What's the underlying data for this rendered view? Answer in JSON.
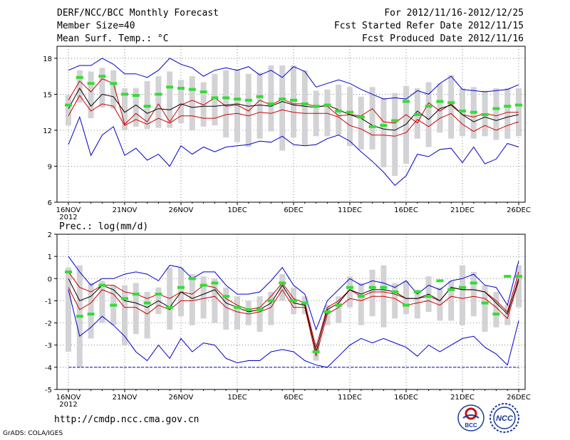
{
  "header": {
    "title": "DERF/NCC/BCC Monthly Forecast",
    "member_size": "Member Size=40",
    "variable1": "Mean Surf. Temp.: °C",
    "period": "For 2012/11/16-2012/12/25",
    "start_date": "Fcst Started Refer Date 2012/11/15",
    "produced_date": "Fcst Produced Date 2012/11/16"
  },
  "footer": {
    "url": "http://cmdp.ncc.cma.gov.cn",
    "credit": "GrADS: COLA/IGES",
    "logo_bcc": "BCC",
    "logo_ncc": "NCC"
  },
  "colors": {
    "envelope": "#0000cc",
    "spread": "#cc0000",
    "mean": "#000000",
    "obs": "#33dd33",
    "box": "#d3d3d6",
    "grid": "#555555"
  },
  "chart_data": [
    {
      "type": "line",
      "title": "Mean Surf. Temp.: °C",
      "xlabel": "",
      "ylabel": "Mean Surf. Temp. (°C)",
      "x_ticks": [
        "16NOV",
        "21NOV",
        "26NOV",
        "1DEC",
        "6DEC",
        "11DEC",
        "16DEC",
        "21DEC",
        "26DEC"
      ],
      "x_tick_year": "2012",
      "ylim": [
        6,
        19
      ],
      "y_ticks": [
        6,
        9,
        12,
        15,
        18
      ],
      "grid": true,
      "series": [
        {
          "name": "max",
          "values": [
            10.8,
            13.1,
            9.9,
            11.6,
            12.3,
            9.9,
            10.5,
            9.5,
            10.0,
            9.0,
            10.7,
            10.0,
            10.6,
            10.2,
            10.6,
            10.7,
            10.8,
            11.1,
            11.0,
            11.5,
            10.8,
            10.7,
            10.8,
            11.3,
            11.6,
            11.1,
            10.2,
            9.4,
            8.5,
            7.4,
            8.2,
            10.0,
            9.8,
            10.4,
            10.5,
            9.3,
            10.6,
            9.2,
            9.6,
            10.9,
            10.6
          ]
        },
        {
          "name": "upper",
          "values": [
            14.5,
            16.1,
            15.2,
            16.3,
            15.9,
            12.5,
            13.4,
            12.7,
            14.2,
            12.7,
            14.1,
            14.5,
            14.1,
            14.7,
            14.0,
            14.1,
            13.6,
            14.5,
            14.1,
            14.6,
            14.2,
            14.2,
            14.0,
            14.0,
            13.2,
            13.3,
            13.2,
            13.8,
            12.7,
            12.6,
            13.3,
            12.6,
            14.3,
            13.6,
            14.2,
            13.3,
            13.1,
            13.4,
            13.2,
            13.5,
            13.5
          ]
        },
        {
          "name": "mean",
          "values": [
            13.8,
            15.5,
            14.0,
            15.0,
            14.8,
            13.5,
            14.1,
            13.4,
            13.8,
            13.7,
            14.2,
            13.9,
            14.0,
            14.0,
            14.1,
            14.2,
            14.0,
            14.1,
            14.0,
            14.4,
            14.1,
            14.0,
            13.9,
            14.1,
            13.7,
            13.3,
            13.0,
            12.4,
            12.1,
            12.0,
            12.5,
            13.6,
            12.9,
            13.8,
            14.1,
            13.3,
            12.7,
            13.1,
            12.8,
            13.1,
            13.3
          ]
        },
        {
          "name": "lower",
          "values": [
            13.2,
            14.9,
            13.6,
            14.2,
            14.0,
            12.4,
            12.9,
            12.5,
            13.0,
            12.6,
            13.2,
            13.2,
            13.0,
            13.0,
            13.3,
            13.4,
            13.2,
            13.5,
            13.4,
            13.7,
            13.5,
            13.4,
            13.4,
            13.4,
            13.1,
            12.4,
            12.1,
            11.6,
            11.6,
            11.5,
            11.8,
            12.9,
            12.3,
            13.0,
            13.4,
            12.5,
            11.9,
            12.4,
            12.0,
            12.4,
            12.7
          ]
        },
        {
          "name": "min",
          "values": [
            17.0,
            17.4,
            17.4,
            18.0,
            17.5,
            16.7,
            16.7,
            16.4,
            17.0,
            18.0,
            17.5,
            17.2,
            16.5,
            17.0,
            17.2,
            17.0,
            17.3,
            16.6,
            17.0,
            16.4,
            17.3,
            16.9,
            15.6,
            15.9,
            16.2,
            15.9,
            15.4,
            15.0,
            14.6,
            14.7,
            14.6,
            15.3,
            15.0,
            15.9,
            16.5,
            15.4,
            15.3,
            15.2,
            15.3,
            15.4,
            15.8
          ]
        },
        {
          "name": "observed",
          "values": [
            14.1,
            16.4,
            15.9,
            16.5,
            15.9,
            15.0,
            14.9,
            14.0,
            15.0,
            15.6,
            15.5,
            15.4,
            15.2,
            14.7,
            14.7,
            14.6,
            14.5,
            14.8,
            14.2,
            14.6,
            14.5,
            14.2,
            14.0,
            14.1,
            13.6,
            13.5,
            13.1,
            12.3,
            12.4,
            12.8,
            14.4,
            13.3,
            14.0,
            14.4,
            14.3,
            13.6,
            13.5,
            13.3,
            13.8,
            14.0,
            14.1
          ]
        },
        {
          "name": "box_top",
          "values": [
            14.9,
            17.0,
            16.9,
            17.2,
            17.0,
            15.5,
            15.5,
            16.1,
            16.5,
            16.9,
            16.2,
            16.5,
            16.0,
            16.7,
            17.0,
            17.1,
            16.7,
            16.8,
            17.4,
            17.4,
            17.4,
            17.0,
            15.3,
            15.4,
            15.8,
            15.6,
            14.8,
            15.6,
            14.7,
            15.1,
            15.7,
            15.5,
            16.0,
            15.9,
            16.6,
            15.5,
            15.6,
            15.3,
            15.5,
            15.5,
            15.5
          ]
        },
        {
          "name": "box_bottom",
          "values": [
            12.4,
            14.3,
            13.0,
            13.9,
            13.8,
            12.0,
            12.3,
            12.1,
            12.2,
            12.2,
            12.6,
            12.0,
            12.3,
            12.4,
            11.4,
            11.0,
            10.6,
            11.3,
            11.9,
            10.3,
            11.4,
            10.7,
            11.5,
            11.5,
            11.6,
            10.7,
            10.4,
            10.4,
            8.9,
            8.2,
            9.2,
            11.3,
            10.6,
            11.8,
            11.3,
            11.5,
            11.3,
            11.5,
            11.2,
            11.3,
            11.5
          ]
        }
      ]
    },
    {
      "type": "line",
      "title": "Prec.: log(mm/d)",
      "xlabel": "",
      "ylabel": "Prec. log(mm/d)",
      "x_ticks": [
        "16NOV",
        "21NOV",
        "26NOV",
        "1DEC",
        "6DEC",
        "11DEC",
        "16DEC",
        "21DEC",
        "26DEC"
      ],
      "x_tick_year": "2012",
      "ylim": [
        -5,
        2
      ],
      "y_ticks": [
        -5,
        -4,
        -3,
        -2,
        -1,
        0,
        1,
        2
      ],
      "grid": true,
      "series": [
        {
          "name": "max",
          "values": [
            1.0,
            0.3,
            -0.3,
            0.0,
            0.0,
            0.2,
            0.3,
            0.2,
            -0.1,
            0.6,
            0.5,
            0.0,
            0.3,
            0.3,
            -0.3,
            -0.7,
            -0.7,
            -0.6,
            -0.1,
            0.5,
            -0.3,
            -0.7,
            -2.3,
            -1.0,
            -0.5,
            0.0,
            -0.3,
            -0.1,
            -0.2,
            -0.4,
            -0.1,
            -0.7,
            -0.3,
            -0.5,
            -0.1,
            0.0,
            0.2,
            -0.3,
            -0.4,
            -1.2,
            0.8
          ]
        },
        {
          "name": "upper",
          "values": [
            0.3,
            -0.4,
            -0.6,
            -0.3,
            -0.3,
            -0.6,
            -0.7,
            -0.9,
            -0.7,
            -0.9,
            -0.6,
            -0.7,
            -0.3,
            -0.4,
            -0.9,
            -1.2,
            -1.4,
            -1.3,
            -0.8,
            -0.2,
            -0.9,
            -1.1,
            -3.1,
            -1.3,
            -1.0,
            -0.5,
            -0.8,
            -0.6,
            -0.6,
            -0.7,
            -0.9,
            -0.9,
            -0.8,
            -1.0,
            -0.4,
            -0.5,
            -0.5,
            -0.6,
            -1.0,
            -1.5,
            0.3
          ]
        },
        {
          "name": "mean",
          "values": [
            0.0,
            -1.0,
            -0.8,
            -0.3,
            -0.5,
            -1.0,
            -1.1,
            -1.3,
            -1.0,
            -1.3,
            -0.6,
            -0.9,
            -0.7,
            -0.5,
            -1.1,
            -1.3,
            -1.5,
            -1.4,
            -1.1,
            -0.3,
            -1.1,
            -1.2,
            -3.3,
            -1.4,
            -1.1,
            -0.5,
            -0.7,
            -0.5,
            -0.5,
            -0.6,
            -0.9,
            -0.9,
            -0.7,
            -1.0,
            -0.4,
            -0.5,
            -0.5,
            -0.6,
            -1.1,
            -1.6,
            0.0
          ]
        },
        {
          "name": "lower",
          "values": [
            -0.4,
            -1.4,
            -1.1,
            -0.5,
            -0.7,
            -1.3,
            -1.3,
            -1.6,
            -1.2,
            -1.4,
            -1.0,
            -1.0,
            -0.9,
            -0.8,
            -1.3,
            -1.5,
            -1.6,
            -1.5,
            -1.3,
            -0.5,
            -1.3,
            -1.3,
            -3.5,
            -1.6,
            -1.3,
            -0.9,
            -1.0,
            -0.8,
            -0.8,
            -0.9,
            -1.2,
            -1.1,
            -1.0,
            -1.2,
            -0.8,
            -0.9,
            -0.8,
            -0.9,
            -1.3,
            -1.8,
            -0.1
          ]
        },
        {
          "name": "min",
          "values": [
            -0.5,
            -2.6,
            -2.2,
            -1.7,
            -2.1,
            -2.6,
            -3.3,
            -3.7,
            -3.0,
            -3.6,
            -2.7,
            -3.3,
            -2.9,
            -3.0,
            -3.6,
            -3.8,
            -3.7,
            -3.7,
            -3.3,
            -3.2,
            -3.3,
            -3.7,
            -3.9,
            -4.0,
            -3.5,
            -3.0,
            -2.7,
            -2.9,
            -2.7,
            -2.9,
            -3.1,
            -3.5,
            -3.0,
            -3.3,
            -3.0,
            -2.7,
            -2.6,
            -3.1,
            -3.4,
            -3.9,
            -1.9
          ]
        },
        {
          "name": "observed",
          "values": [
            0.3,
            -1.7,
            -1.6,
            -0.3,
            -1.2,
            -0.9,
            -0.7,
            -1.1,
            -0.7,
            -1.3,
            -0.4,
            0.0,
            -0.3,
            -0.2,
            -0.8,
            -1.3,
            -1.4,
            -1.4,
            -1.0,
            -0.2,
            -1.0,
            -1.1,
            -3.3,
            -1.5,
            -1.2,
            -0.4,
            -0.8,
            -0.4,
            -0.4,
            -0.6,
            -1.2,
            -0.6,
            -0.8,
            -0.1,
            -0.5,
            -0.4,
            -0.2,
            -1.1,
            -1.6,
            0.1,
            0.1
          ]
        },
        {
          "name": "box_top",
          "values": [
            0.5,
            0.6,
            -0.2,
            -0.1,
            -0.3,
            -0.3,
            -0.2,
            -0.6,
            -0.4,
            0.5,
            0.5,
            0.2,
            0.1,
            0.0,
            -0.4,
            -0.8,
            -1.0,
            -0.8,
            -0.6,
            0.2,
            -0.4,
            -0.8,
            -2.9,
            -1.2,
            -0.8,
            0.1,
            -0.2,
            0.4,
            0.6,
            -0.2,
            -0.1,
            -0.5,
            0.1,
            -0.4,
            -0.1,
            0.6,
            0.3,
            -0.3,
            -0.6,
            -1.2,
            0.6
          ]
        },
        {
          "name": "box_bottom",
          "values": [
            -3.3,
            -4.0,
            -2.7,
            -2.0,
            -2.1,
            -3.0,
            -2.5,
            -2.7,
            -1.6,
            -2.3,
            -1.7,
            -2.1,
            -1.8,
            -2.0,
            -2.3,
            -2.3,
            -2.1,
            -2.4,
            -2.1,
            -1.0,
            -1.6,
            -1.6,
            -3.7,
            -2.1,
            -2.0,
            -1.3,
            -2.1,
            -1.7,
            -2.2,
            -1.8,
            -1.6,
            -1.8,
            -1.5,
            -1.9,
            -1.9,
            -2.1,
            -1.7,
            -2.4,
            -2.2,
            -2.1,
            -1.3
          ]
        },
        {
          "name": "floor",
          "values": [
            -4,
            -4
          ]
        }
      ]
    }
  ]
}
